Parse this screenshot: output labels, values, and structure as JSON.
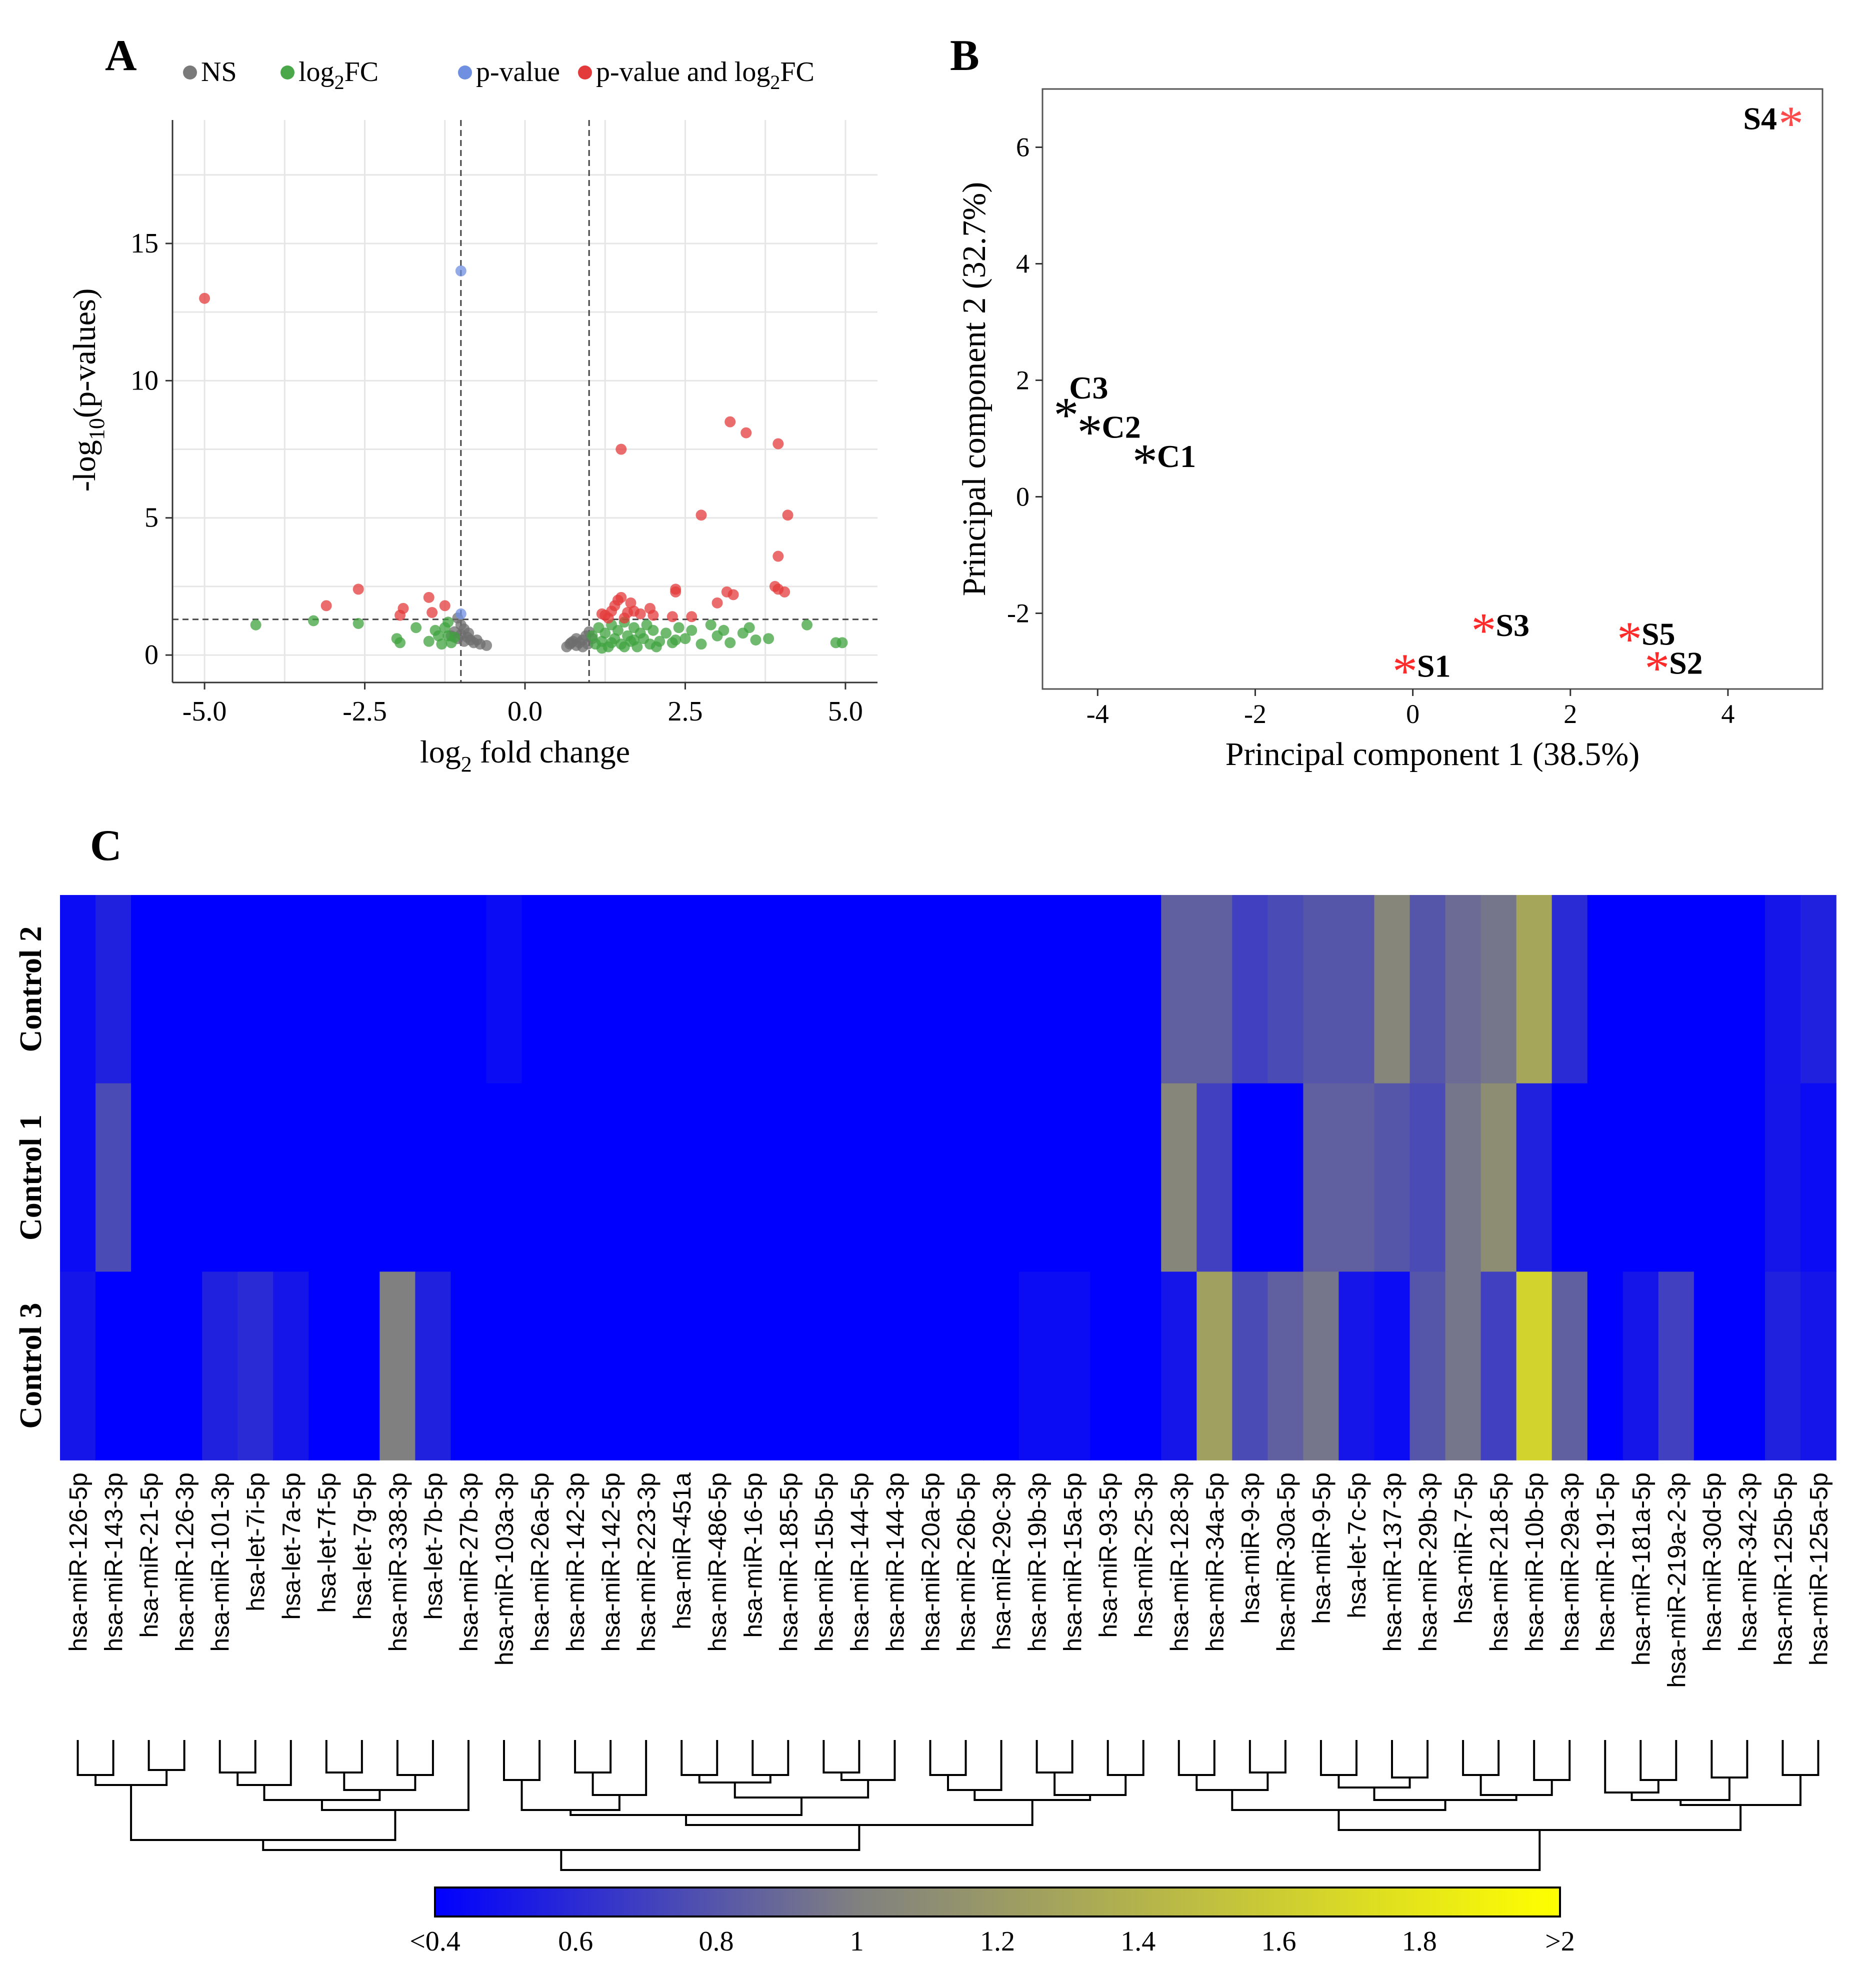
{
  "panel_labels": {
    "a": "A",
    "b": "B",
    "c": "C"
  },
  "chart_data": [
    {
      "type": "scatter",
      "id": "volcano",
      "xlabel": "log",
      "xlabel_sub": "2",
      "xlabel_rest": " fold change",
      "ylabel": "-log",
      "ylabel_sub": "10",
      "ylabel_rest": "(p-values)",
      "xlim": [
        -5.5,
        5.5
      ],
      "ylim": [
        -1,
        19.5
      ],
      "x_ticks": [
        -5.0,
        -2.5,
        0.0,
        2.5,
        5.0
      ],
      "x_tick_labels": [
        "-5.0",
        "-2.5",
        "0.0",
        "2.5",
        "5.0"
      ],
      "y_ticks": [
        0,
        5,
        10,
        15
      ],
      "y_tick_labels": [
        "0",
        "5",
        "10",
        "15"
      ],
      "grid": true,
      "vlines": [
        -1,
        1
      ],
      "hline": 1.3,
      "legend": {
        "placement": "top",
        "entries": [
          {
            "label": "NS",
            "color": "#7a7a7a"
          },
          {
            "label": "log",
            "sub": "2",
            "rest": "FC",
            "color": "#4aa84a"
          },
          {
            "label": "p-value",
            "color": "#6f8fe0"
          },
          {
            "label": "p-value and log",
            "sub": "2",
            "rest": "FC",
            "color": "#e33b3b"
          }
        ]
      },
      "series": [
        {
          "name": "NS",
          "color": "#6e6e6e",
          "points": [
            [
              -1.05,
              1.35
            ],
            [
              -1.0,
              1.1
            ],
            [
              -0.95,
              0.95
            ],
            [
              -1.1,
              0.85
            ],
            [
              -1.0,
              0.75
            ],
            [
              -0.9,
              0.65
            ],
            [
              -0.85,
              0.55
            ],
            [
              -1.05,
              0.6
            ],
            [
              -0.95,
              0.5
            ],
            [
              -0.8,
              0.45
            ],
            [
              -0.7,
              0.4
            ],
            [
              -0.6,
              0.35
            ],
            [
              -1.15,
              0.7
            ],
            [
              -0.75,
              0.55
            ],
            [
              -0.88,
              0.8
            ],
            [
              0.65,
              0.3
            ],
            [
              0.7,
              0.4
            ],
            [
              0.75,
              0.5
            ],
            [
              0.8,
              0.35
            ],
            [
              0.85,
              0.45
            ],
            [
              0.9,
              0.55
            ],
            [
              0.95,
              0.7
            ],
            [
              1.0,
              0.85
            ],
            [
              0.8,
              0.6
            ],
            [
              0.9,
              0.3
            ],
            [
              0.72,
              0.45
            ],
            [
              0.98,
              0.4
            ],
            [
              1.05,
              0.6
            ]
          ]
        },
        {
          "name": "log2FC",
          "color": "#3fa33f",
          "points": [
            [
              -4.2,
              1.1
            ],
            [
              -3.3,
              1.25
            ],
            [
              -2.6,
              1.15
            ],
            [
              -2.0,
              0.6
            ],
            [
              -1.95,
              0.45
            ],
            [
              -1.7,
              1.0
            ],
            [
              -1.5,
              0.5
            ],
            [
              -1.4,
              0.9
            ],
            [
              -1.25,
              1.0
            ],
            [
              -1.2,
              1.2
            ],
            [
              -1.35,
              0.7
            ],
            [
              -1.15,
              0.45
            ],
            [
              -1.2,
              0.7
            ],
            [
              -1.3,
              0.4
            ],
            [
              -1.1,
              0.65
            ],
            [
              1.05,
              0.7
            ],
            [
              1.1,
              0.4
            ],
            [
              1.15,
              1.0
            ],
            [
              1.2,
              0.5
            ],
            [
              1.25,
              0.8
            ],
            [
              1.3,
              0.3
            ],
            [
              1.35,
              1.1
            ],
            [
              1.4,
              0.6
            ],
            [
              1.45,
              0.9
            ],
            [
              1.5,
              0.4
            ],
            [
              1.55,
              1.2
            ],
            [
              1.6,
              0.7
            ],
            [
              1.65,
              0.5
            ],
            [
              1.7,
              1.0
            ],
            [
              1.75,
              0.3
            ],
            [
              1.8,
              0.8
            ],
            [
              1.85,
              0.6
            ],
            [
              1.9,
              1.1
            ],
            [
              1.95,
              0.4
            ],
            [
              2.0,
              0.9
            ],
            [
              2.1,
              0.5
            ],
            [
              2.2,
              0.8
            ],
            [
              2.3,
              0.45
            ],
            [
              2.4,
              1.0
            ],
            [
              2.5,
              0.6
            ],
            [
              2.6,
              0.9
            ],
            [
              2.75,
              0.4
            ],
            [
              2.9,
              1.1
            ],
            [
              3.0,
              0.7
            ],
            [
              3.1,
              0.9
            ],
            [
              3.2,
              0.45
            ],
            [
              3.4,
              0.8
            ],
            [
              3.5,
              1.0
            ],
            [
              3.6,
              0.55
            ],
            [
              3.8,
              0.6
            ],
            [
              4.4,
              1.1
            ],
            [
              4.85,
              0.45
            ],
            [
              4.95,
              0.45
            ],
            [
              1.2,
              0.25
            ],
            [
              1.35,
              0.45
            ],
            [
              1.55,
              0.3
            ],
            [
              1.7,
              0.55
            ],
            [
              2.05,
              0.3
            ],
            [
              2.35,
              0.55
            ]
          ]
        },
        {
          "name": "p-value",
          "color": "#6f8fe0",
          "points": [
            [
              -1.0,
              14.0
            ],
            [
              -1.0,
              1.5
            ]
          ]
        },
        {
          "name": "p-value and log2FC",
          "color": "#e33b3b",
          "points": [
            [
              -5.0,
              13.0
            ],
            [
              -3.1,
              1.8
            ],
            [
              -2.6,
              2.4
            ],
            [
              -1.9,
              1.7
            ],
            [
              -1.95,
              1.45
            ],
            [
              -1.5,
              2.1
            ],
            [
              -1.45,
              1.55
            ],
            [
              -1.25,
              1.8
            ],
            [
              1.5,
              7.5
            ],
            [
              3.2,
              8.5
            ],
            [
              3.45,
              8.1
            ],
            [
              3.95,
              7.7
            ],
            [
              4.1,
              5.1
            ],
            [
              2.75,
              5.1
            ],
            [
              3.95,
              3.6
            ],
            [
              3.95,
              2.4
            ],
            [
              4.05,
              2.3
            ],
            [
              3.9,
              2.5
            ],
            [
              3.25,
              2.2
            ],
            [
              3.15,
              2.3
            ],
            [
              3.0,
              1.9
            ],
            [
              2.35,
              2.4
            ],
            [
              2.35,
              2.3
            ],
            [
              2.3,
              1.4
            ],
            [
              1.8,
              1.5
            ],
            [
              1.65,
              1.9
            ],
            [
              1.5,
              2.1
            ],
            [
              1.4,
              1.8
            ],
            [
              1.35,
              1.6
            ],
            [
              1.6,
              1.55
            ],
            [
              1.95,
              1.7
            ],
            [
              1.55,
              1.35
            ],
            [
              1.2,
              1.5
            ],
            [
              2.6,
              1.4
            ],
            [
              1.3,
              1.35
            ],
            [
              2.0,
              1.45
            ],
            [
              1.7,
              1.6
            ],
            [
              1.45,
              2.0
            ],
            [
              1.25,
              1.45
            ]
          ]
        }
      ]
    },
    {
      "type": "scatter",
      "id": "pca",
      "xlabel": "Principal component 1 (38.5%)",
      "ylabel": "Principal component 2 (32.7%)",
      "xlim": [
        -4.7,
        5.2
      ],
      "ylim": [
        -3.3,
        7.0
      ],
      "x_ticks": [
        -4,
        -2,
        0,
        2,
        4
      ],
      "x_tick_labels": [
        "-4",
        "-2",
        "0",
        "2",
        "4"
      ],
      "y_ticks": [
        -2,
        0,
        2,
        4,
        6
      ],
      "y_tick_labels": [
        "-2",
        "0",
        "2",
        "4",
        "6"
      ],
      "marker": "*",
      "points": [
        {
          "label": "C3",
          "x": -4.4,
          "y": 1.5,
          "color": "#000000",
          "label_pos": "above-right"
        },
        {
          "label": "C2",
          "x": -4.1,
          "y": 1.2,
          "color": "#000000",
          "label_pos": "right"
        },
        {
          "label": "C1",
          "x": -3.4,
          "y": 0.7,
          "color": "#000000",
          "label_pos": "right"
        },
        {
          "label": "S4",
          "x": 4.8,
          "y": 6.5,
          "color": "#ff4a4a",
          "label_pos": "left"
        },
        {
          "label": "S3",
          "x": 0.9,
          "y": -2.2,
          "color": "#ff2a2a",
          "label_pos": "right"
        },
        {
          "label": "S1",
          "x": -0.1,
          "y": -2.9,
          "color": "#ff2a2a",
          "label_pos": "right"
        },
        {
          "label": "S5",
          "x": 2.75,
          "y": -2.35,
          "color": "#ff2a2a",
          "label_pos": "right"
        },
        {
          "label": "S2",
          "x": 3.1,
          "y": -2.85,
          "color": "#ff2a2a",
          "label_pos": "right"
        }
      ]
    },
    {
      "type": "heatmap",
      "id": "heatmap",
      "rows": [
        "Control 2",
        "Control 1",
        "Control 3"
      ],
      "columns": [
        "hsa-miR-126-5p",
        "hsa-miR-143-3p",
        "hsa-miR-21-5p",
        "hsa-miR-126-3p",
        "hsa-miR-101-3p",
        "hsa-let-7i-5p",
        "hsa-let-7a-5p",
        "hsa-let-7f-5p",
        "hsa-let-7g-5p",
        "hsa-miR-338-3p",
        "hsa-let-7b-5p",
        "hsa-miR-27b-3p",
        "hsa-miR-103a-3p",
        "hsa-miR-26a-5p",
        "hsa-miR-142-3p",
        "hsa-miR-142-5p",
        "hsa-miR-223-3p",
        "hsa-miR-451a",
        "hsa-miR-486-5p",
        "hsa-miR-16-5p",
        "hsa-miR-185-5p",
        "hsa-miR-15b-5p",
        "hsa-miR-144-5p",
        "hsa-miR-144-3p",
        "hsa-miR-20a-5p",
        "hsa-miR-26b-5p",
        "hsa-miR-29c-3p",
        "hsa-miR-19b-3p",
        "hsa-miR-15a-5p",
        "hsa-miR-93-5p",
        "hsa-miR-25-3p",
        "hsa-miR-128-3p",
        "hsa-miR-34a-5p",
        "hsa-miR-9-3p",
        "hsa-miR-30a-5p",
        "hsa-miR-9-5p",
        "hsa-let-7c-5p",
        "hsa-miR-137-3p",
        "hsa-miR-29b-3p",
        "hsa-miR-7-5p",
        "hsa-miR-218-5p",
        "hsa-miR-10b-5p",
        "hsa-miR-29a-3p",
        "hsa-miR-191-5p",
        "hsa-miR-181a-5p",
        "hsa-miR-219a-2-3p",
        "hsa-miR-30d-5p",
        "hsa-miR-342-3p",
        "hsa-miR-125b-5p",
        "hsa-miR-125a-5p"
      ],
      "values": [
        [
          0.45,
          0.55,
          0.4,
          0.4,
          0.4,
          0.4,
          0.4,
          0.4,
          0.4,
          0.4,
          0.4,
          0.4,
          0.45,
          0.4,
          0.4,
          0.4,
          0.4,
          0.4,
          0.4,
          0.4,
          0.4,
          0.4,
          0.4,
          0.4,
          0.4,
          0.4,
          0.4,
          0.4,
          0.4,
          0.4,
          0.4,
          0.85,
          0.85,
          0.7,
          0.75,
          0.8,
          0.8,
          1.05,
          0.8,
          0.9,
          0.95,
          1.3,
          0.6,
          0.4,
          0.4,
          0.4,
          0.4,
          0.4,
          0.5,
          0.55
        ],
        [
          0.45,
          0.75,
          0.4,
          0.4,
          0.4,
          0.4,
          0.4,
          0.4,
          0.4,
          0.4,
          0.4,
          0.4,
          0.4,
          0.4,
          0.4,
          0.4,
          0.4,
          0.4,
          0.4,
          0.4,
          0.4,
          0.4,
          0.4,
          0.4,
          0.4,
          0.4,
          0.4,
          0.4,
          0.4,
          0.4,
          0.4,
          1.05,
          0.7,
          0.4,
          0.4,
          0.85,
          0.85,
          0.8,
          0.75,
          0.95,
          1.1,
          0.55,
          0.4,
          0.4,
          0.4,
          0.4,
          0.4,
          0.4,
          0.5,
          0.45
        ],
        [
          0.5,
          0.4,
          0.4,
          0.4,
          0.55,
          0.6,
          0.5,
          0.4,
          0.4,
          1.0,
          0.55,
          0.4,
          0.4,
          0.4,
          0.4,
          0.4,
          0.4,
          0.4,
          0.4,
          0.4,
          0.4,
          0.4,
          0.4,
          0.4,
          0.4,
          0.4,
          0.4,
          0.45,
          0.45,
          0.4,
          0.4,
          0.5,
          1.25,
          0.75,
          0.85,
          0.95,
          0.5,
          0.45,
          0.8,
          0.95,
          0.7,
          1.65,
          0.85,
          0.4,
          0.5,
          0.7,
          0.4,
          0.4,
          0.55,
          0.5
        ]
      ],
      "colorbar": {
        "min": 0.4,
        "max": 2.0,
        "ticks": [
          0.4,
          0.6,
          0.8,
          1.0,
          1.2,
          1.4,
          1.6,
          1.8,
          2.0
        ],
        "tick_labels": [
          "<0.4",
          "0.6",
          "0.8",
          "1",
          "1.2",
          "1.4",
          "1.6",
          "1.8",
          ">2"
        ],
        "colors": [
          "#0000ff",
          "#808080",
          "#ffff00"
        ]
      }
    }
  ]
}
